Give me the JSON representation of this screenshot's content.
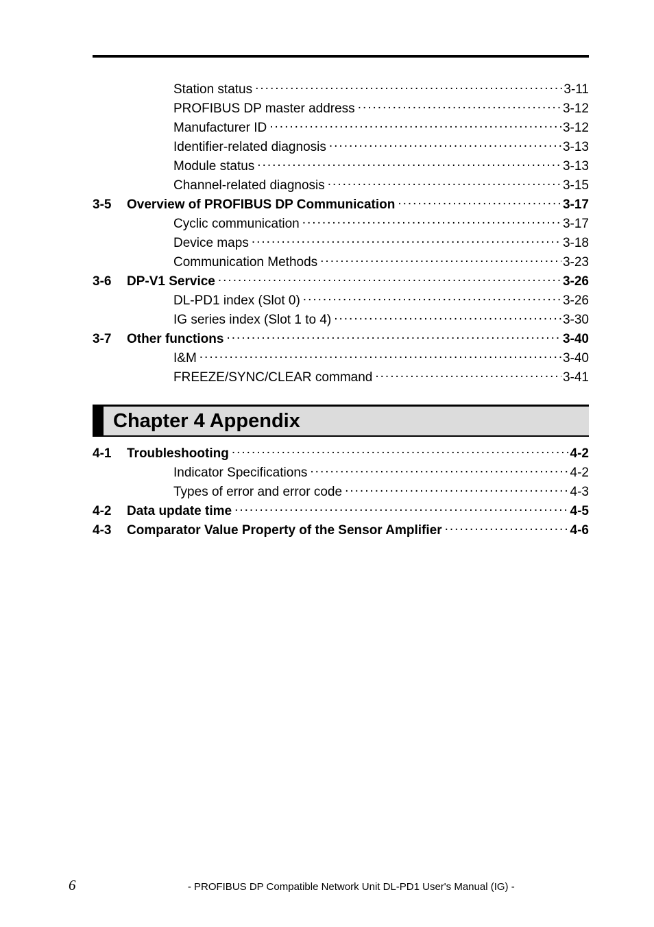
{
  "top_entries": [
    {
      "num": "",
      "label": "Station status",
      "page": "3-11",
      "bold": false,
      "indent": "sub"
    },
    {
      "num": "",
      "label": "PROFIBUS DP master address",
      "page": "3-12",
      "bold": false,
      "indent": "sub"
    },
    {
      "num": "",
      "label": "Manufacturer ID",
      "page": "3-12",
      "bold": false,
      "indent": "sub"
    },
    {
      "num": "",
      "label": "Identifier-related diagnosis",
      "page": "3-13",
      "bold": false,
      "indent": "sub"
    },
    {
      "num": "",
      "label": "Module status",
      "page": "3-13",
      "bold": false,
      "indent": "sub"
    },
    {
      "num": "",
      "label": "Channel-related diagnosis",
      "page": "3-15",
      "bold": false,
      "indent": "sub"
    },
    {
      "num": "3-5",
      "label": "Overview of PROFIBUS DP Communication",
      "page": "3-17",
      "bold": true,
      "indent": "section"
    },
    {
      "num": "",
      "label": "Cyclic communication",
      "page": "3-17",
      "bold": false,
      "indent": "sub"
    },
    {
      "num": "",
      "label": "Device maps",
      "page": "3-18",
      "bold": false,
      "indent": "sub"
    },
    {
      "num": "",
      "label": "Communication Methods",
      "page": "3-23",
      "bold": false,
      "indent": "sub"
    },
    {
      "num": "3-6",
      "label": "DP-V1 Service",
      "page": "3-26",
      "bold": true,
      "indent": "section"
    },
    {
      "num": "",
      "label": "DL-PD1 index (Slot 0)",
      "page": "3-26",
      "bold": false,
      "indent": "sub"
    },
    {
      "num": "",
      "label": "IG series index (Slot 1 to 4)",
      "page": "3-30",
      "bold": false,
      "indent": "sub"
    },
    {
      "num": "3-7",
      "label": "Other functions",
      "page": "3-40",
      "bold": true,
      "indent": "section"
    },
    {
      "num": "",
      "label": "I&M",
      "page": "3-40",
      "bold": false,
      "indent": "sub"
    },
    {
      "num": "",
      "label": "FREEZE/SYNC/CLEAR command",
      "page": "3-41",
      "bold": false,
      "indent": "sub"
    }
  ],
  "chapter": {
    "title": "Chapter 4   Appendix"
  },
  "bottom_entries": [
    {
      "num": "4-1",
      "label": "Troubleshooting",
      "page": "4-2",
      "bold": true,
      "indent": "section"
    },
    {
      "num": "",
      "label": "Indicator Specifications",
      "page": "4-2",
      "bold": false,
      "indent": "sub"
    },
    {
      "num": "",
      "label": "Types of error and error code",
      "page": "4-3",
      "bold": false,
      "indent": "sub"
    },
    {
      "num": "4-2",
      "label": "Data update time",
      "page": "4-5",
      "bold": true,
      "indent": "section"
    },
    {
      "num": "4-3",
      "label": "Comparator Value Property of the Sensor Amplifier",
      "page": "4-6",
      "bold": true,
      "indent": "section"
    }
  ],
  "footer": {
    "page_number": "6",
    "text": "- PROFIBUS DP Compatible Network Unit DL-PD1 User's Manual (IG) -"
  },
  "colors": {
    "black": "#000000",
    "grey": "#dcdcdc",
    "white": "#ffffff"
  }
}
